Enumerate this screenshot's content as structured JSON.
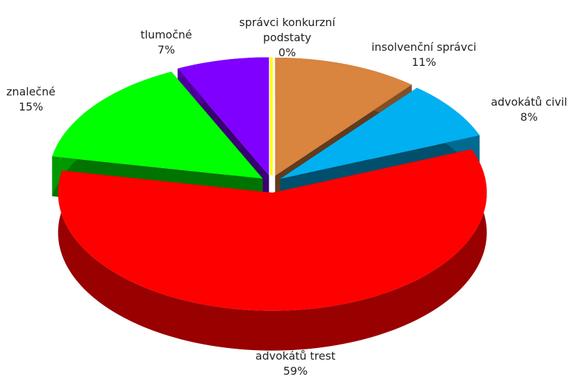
{
  "chart_data": {
    "type": "pie",
    "categories": [
      "správci konkurzní podstaty",
      "insolvenční správci",
      "advokátů civil",
      "advokátů trest",
      "znalečné",
      "tlumočné"
    ],
    "values": [
      0,
      11,
      8,
      59,
      15,
      7
    ],
    "value_labels": [
      "0%",
      "11%",
      "8%",
      "59%",
      "15%",
      "7%"
    ],
    "colors": [
      "#ffff00",
      "#d9843f",
      "#00b0f0",
      "#ff0000",
      "#00ff00",
      "#7f00ff"
    ]
  }
}
